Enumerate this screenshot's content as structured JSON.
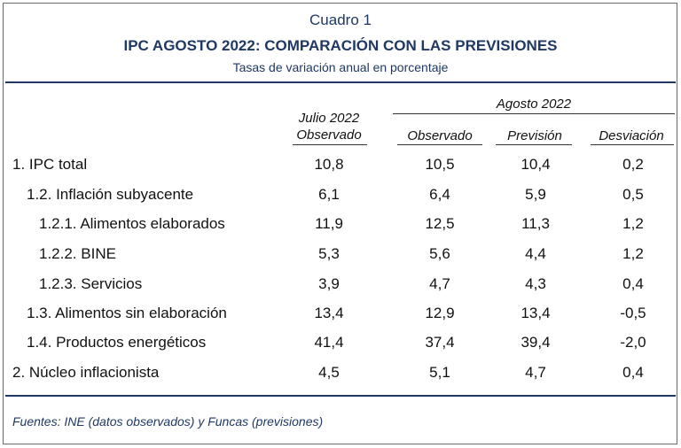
{
  "caption": "Cuadro 1",
  "title": "IPC AGOSTO 2022: COMPARACIÓN CON LAS PREVISIONES",
  "subtitle": "Tasas de variación anual en porcentaje",
  "headers": {
    "julio_line1": "Julio 2022",
    "julio_line2": "Observado",
    "agosto_group": "Agosto 2022",
    "observado": "Observado",
    "prevision": "Previsión",
    "desviacion": "Desviación"
  },
  "rows": [
    {
      "label": "1. IPC total",
      "julio": "10,8",
      "observado": "10,5",
      "prevision": "10,4",
      "desviacion": "0,2"
    },
    {
      "label": "1.2. Inflación subyacente",
      "julio": "6,1",
      "observado": "6,4",
      "prevision": "5,9",
      "desviacion": "0,5"
    },
    {
      "label": "1.2.1. Alimentos elaborados",
      "julio": "11,9",
      "observado": "12,5",
      "prevision": "11,3",
      "desviacion": "1,2"
    },
    {
      "label": "1.2.2. BINE",
      "julio": "5,3",
      "observado": "5,6",
      "prevision": "4,4",
      "desviacion": "1,2"
    },
    {
      "label": "1.2.3. Servicios",
      "julio": "3,9",
      "observado": "4,7",
      "prevision": "4,3",
      "desviacion": "0,4"
    },
    {
      "label": "1.3. Alimentos sin elaboración",
      "julio": "13,4",
      "observado": "12,9",
      "prevision": "13,4",
      "desviacion": "-0,5"
    },
    {
      "label": "1.4. Productos energéticos",
      "julio": "41,4",
      "observado": "37,4",
      "prevision": "39,4",
      "desviacion": "-2,0"
    },
    {
      "label": "2. Núcleo inflacionista",
      "julio": "4,5",
      "observado": "5,1",
      "prevision": "4,7",
      "desviacion": "0,4"
    }
  ],
  "source": "Fuentes: INE (datos observados) y Funcas (previsiones)",
  "colors": {
    "accent": "#1f3864"
  }
}
